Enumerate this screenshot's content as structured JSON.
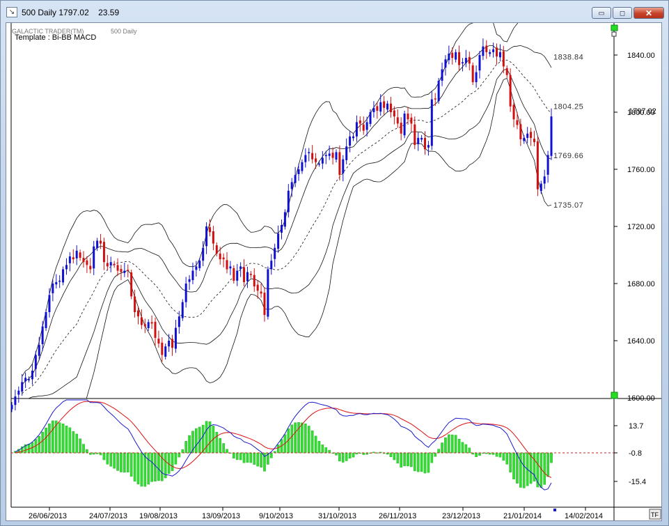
{
  "window": {
    "title": "500 Daily 1797.02",
    "title_value": "23.59",
    "minimize_glyph": "▭",
    "maximize_glyph": "◻",
    "close_glyph": "✕",
    "app_icon": "chart-icon"
  },
  "chart_header": {
    "program": "GALACTIC TRADER(TM)",
    "instrument": "500 Daily",
    "template": "Template : Bi-BB MACD"
  },
  "corner_button": "TF",
  "colors": {
    "up_candle": "#1010d0",
    "down_candle": "#d01010",
    "bands": "#000000",
    "macd_line": "#1a1acc",
    "signal_line": "#dd1111",
    "histogram": "#33dd33",
    "zero_line": "#cc2222"
  },
  "chart_data": [
    {
      "type": "candlestick",
      "title": "500 Daily",
      "y_ticks": [
        "1840.00",
        "1800.00",
        "1760.00",
        "1720.00",
        "1680.00",
        "1640.00",
        "1600.00"
      ],
      "ylim": [
        1600,
        1860
      ],
      "x_ticks": [
        "26/06/2013",
        "24/07/2013",
        "19/08/2013",
        "13/09/2013",
        "9/10/2013",
        "31/10/2013",
        "26/11/2013",
        "23/12/2013",
        "21/01/2014",
        "14/02/2014"
      ],
      "last_price": "1797.02",
      "band_labels": [
        "1838.84",
        "1804.25",
        "1769.66",
        "1735.07"
      ],
      "close": [
        1595,
        1601,
        1605,
        1611,
        1614,
        1613,
        1619,
        1630,
        1637,
        1650,
        1660,
        1672,
        1680,
        1681,
        1682,
        1690,
        1693,
        1699,
        1697,
        1703,
        1698,
        1695,
        1693,
        1690,
        1706,
        1710,
        1708,
        1695,
        1692,
        1695,
        1693,
        1689,
        1688,
        1689,
        1689,
        1671,
        1660,
        1657,
        1651,
        1650,
        1653,
        1652,
        1642,
        1638,
        1630,
        1636,
        1640,
        1635,
        1649,
        1657,
        1667,
        1680,
        1683,
        1689,
        1692,
        1696,
        1705,
        1720,
        1716,
        1708,
        1701,
        1697,
        1697,
        1690,
        1692,
        1682,
        1689,
        1692,
        1681,
        1688,
        1686,
        1678,
        1675,
        1673,
        1658,
        1690,
        1696,
        1705,
        1715,
        1721,
        1730,
        1745,
        1751,
        1756,
        1760,
        1765,
        1770,
        1772,
        1767,
        1765,
        1764,
        1768,
        1770,
        1771,
        1768,
        1772,
        1756,
        1767,
        1776,
        1783,
        1783,
        1793,
        1792,
        1787,
        1793,
        1800,
        1803,
        1801,
        1807,
        1803,
        1806,
        1800,
        1797,
        1792,
        1785,
        1799,
        1795,
        1792,
        1777,
        1782,
        1782,
        1774,
        1777,
        1809,
        1809,
        1822,
        1830,
        1837,
        1841,
        1838,
        1842,
        1833,
        1835,
        1838,
        1834,
        1821,
        1828,
        1840,
        1846,
        1842,
        1842,
        1844,
        1839,
        1842,
        1832,
        1826,
        1804,
        1795,
        1791,
        1781,
        1782,
        1785,
        1782,
        1779,
        1746,
        1750,
        1755,
        1770,
        1797
      ],
      "up_days_color": "blue",
      "down_days_color": "red"
    },
    {
      "type": "macd",
      "y_ticks": [
        "13.7",
        "-0.8",
        "-15.4"
      ],
      "zero_label": "-0.8",
      "series": [
        {
          "name": "MACD",
          "color": "blue"
        },
        {
          "name": "Signal",
          "color": "red"
        },
        {
          "name": "Histogram",
          "color": "green"
        }
      ]
    }
  ]
}
